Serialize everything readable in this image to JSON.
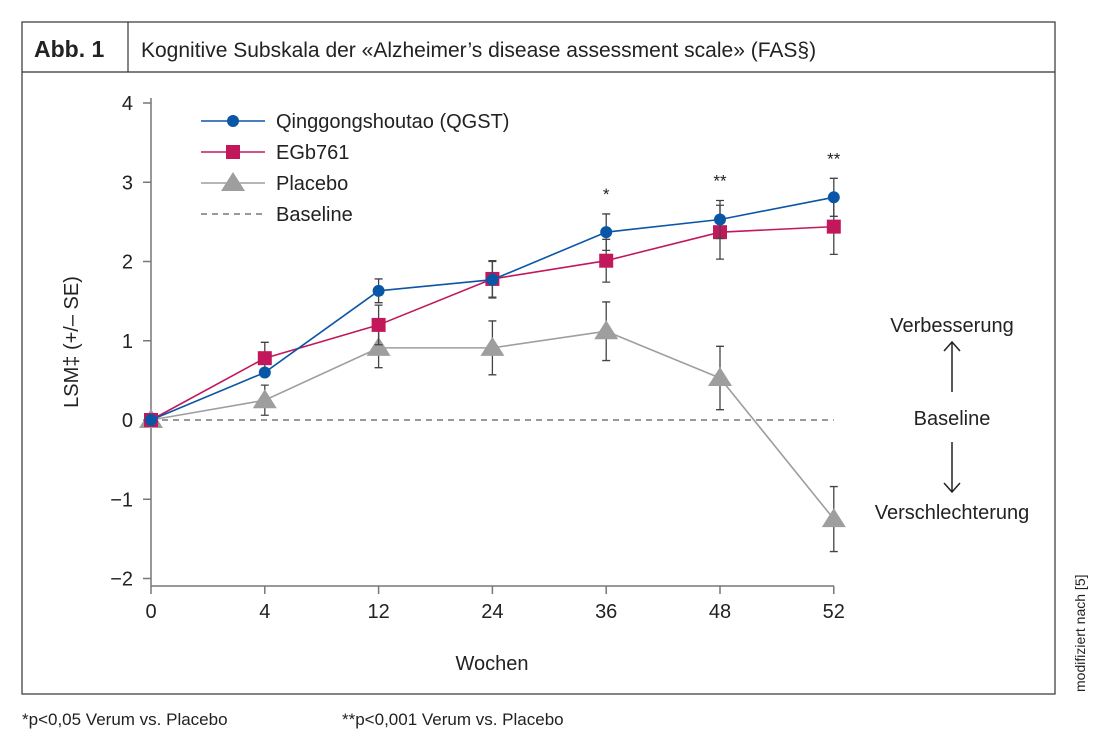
{
  "header": {
    "label": "Abb. 1",
    "title": "Kognitive Subskala der «Alzheimer’s disease assessment scale» (FAS§)"
  },
  "side_note": "modifiziert nach [5]",
  "footnotes": [
    "*p<0,05 Verum vs. Placebo",
    "**p<0,001 Verum vs. Placebo"
  ],
  "annotations": {
    "up": "Verbesserung",
    "mid": "Baseline",
    "down": "Verschlechterung"
  },
  "chart_data": {
    "type": "line",
    "title": "Kognitive Subskala der «Alzheimer’s disease assessment scale» (FAS§)",
    "xlabel": "Wochen",
    "ylabel": "LSM‡ (+/– SE)",
    "categories": [
      "0",
      "4",
      "12",
      "24",
      "36",
      "48",
      "52"
    ],
    "ylim": [
      -2,
      4
    ],
    "yticks": [
      "4",
      "3",
      "2",
      "1",
      "0",
      "−1",
      "−2"
    ],
    "ytick_values": [
      4,
      3,
      2,
      1,
      0,
      -1,
      -2
    ],
    "legend_position": "top-left",
    "series": [
      {
        "name": "Qinggongshoutao (QGST)",
        "color": "#0a56a6",
        "marker": "circle",
        "values": [
          0,
          0.6,
          1.63,
          1.77,
          2.37,
          2.53,
          2.81
        ],
        "se": [
          0,
          0,
          0.15,
          0.23,
          0.23,
          0.24,
          0.24
        ]
      },
      {
        "name": "EGb761",
        "color": "#c2185b",
        "marker": "square",
        "values": [
          0,
          0.78,
          1.2,
          1.78,
          2.01,
          2.37,
          2.44
        ],
        "se": [
          0,
          0.2,
          0.25,
          0.23,
          0.27,
          0.34,
          0.35
        ]
      },
      {
        "name": "Placebo",
        "color": "#9e9e9e",
        "marker": "triangle",
        "values": [
          0,
          0.25,
          0.91,
          0.91,
          1.12,
          0.53,
          -1.25
        ],
        "se": [
          0,
          0.19,
          0.25,
          0.34,
          0.37,
          0.4,
          0.41
        ]
      },
      {
        "name": "Baseline",
        "color": "#333333",
        "marker": "dashed",
        "values": [
          0,
          0,
          0,
          0,
          0,
          0,
          0
        ]
      }
    ],
    "significance": [
      "",
      "",
      "",
      "",
      "*",
      "**",
      "**"
    ]
  }
}
